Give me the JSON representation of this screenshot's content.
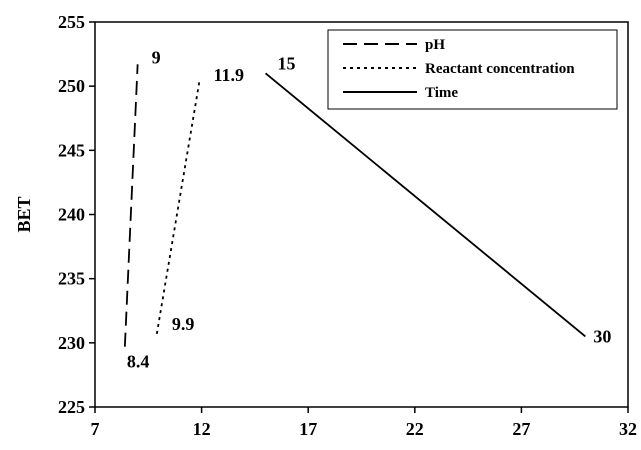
{
  "chart_data": {
    "type": "line",
    "title": "",
    "xlabel": "",
    "ylabel": "BET",
    "xlim": [
      7,
      32
    ],
    "ylim": [
      225,
      255
    ],
    "xticks": [
      "7",
      "12",
      "17",
      "22",
      "27",
      "32"
    ],
    "yticks": [
      "225",
      "230",
      "235",
      "240",
      "245",
      "250",
      "255"
    ],
    "grid": false,
    "legend_position": "top-right",
    "series": [
      {
        "name": "pH",
        "style": "dashed",
        "points": [
          {
            "x": 8.4,
            "y": 229.7
          },
          {
            "x": 9,
            "y": 251.7
          }
        ],
        "point_labels": [
          "8.4",
          "9"
        ]
      },
      {
        "name": "Reactant concentration",
        "style": "dotted",
        "points": [
          {
            "x": 9.9,
            "y": 230.7
          },
          {
            "x": 11.9,
            "y": 250.4
          }
        ],
        "point_labels": [
          "9.9",
          "11.9"
        ]
      },
      {
        "name": "Time",
        "style": "solid",
        "points": [
          {
            "x": 15,
            "y": 251
          },
          {
            "x": 30,
            "y": 230.5
          }
        ],
        "point_labels": [
          "15",
          "30"
        ]
      }
    ]
  }
}
